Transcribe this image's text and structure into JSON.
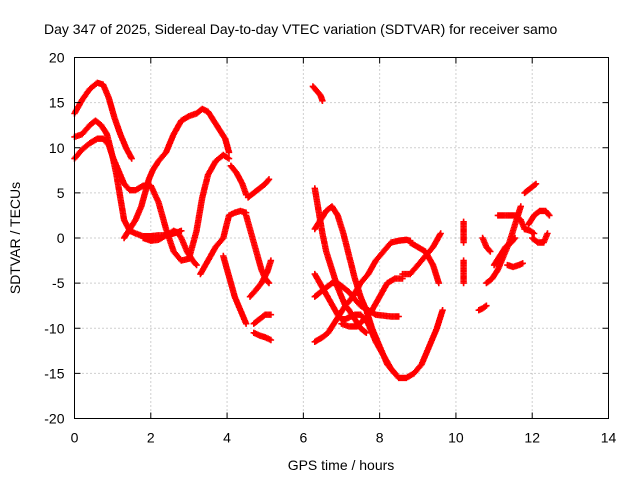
{
  "chart_data": {
    "type": "scatter",
    "title": "Day 347 of 2025, Sidereal Day-to-day VTEC variation (SDTVAR) for receiver samo",
    "xlabel": "GPS time / hours",
    "ylabel": "SDTVAR / TECUs",
    "xlim": [
      0,
      14
    ],
    "ylim": [
      -20,
      20
    ],
    "xticks": [
      "0",
      "2",
      "4",
      "6",
      "8",
      "10",
      "12",
      "14"
    ],
    "yticks": [
      "-20",
      "-15",
      "-10",
      "-5",
      "0",
      "5",
      "10",
      "15",
      "20"
    ],
    "grid": true,
    "marker": "+",
    "marker_color": "#ff0000",
    "series": [
      {
        "x": [
          0.0,
          0.2,
          0.4,
          0.6,
          0.75,
          0.9,
          1.05,
          1.2,
          1.35,
          1.5
        ],
        "y": [
          13.8,
          15.3,
          16.5,
          17.2,
          17.0,
          15.5,
          13.3,
          11.5,
          10.0,
          8.8
        ]
      },
      {
        "x": [
          0.0,
          0.2,
          0.4,
          0.55,
          0.7,
          0.85,
          1.0,
          1.15,
          1.3,
          1.45,
          1.6,
          1.8,
          2.0,
          2.2,
          2.4,
          2.6,
          2.8,
          3.0,
          3.2,
          3.35,
          3.5,
          3.7,
          3.9,
          4.05
        ],
        "y": [
          11.2,
          11.5,
          12.5,
          13.0,
          12.5,
          11.5,
          9.0,
          7.5,
          6.0,
          5.3,
          5.3,
          5.8,
          5.8,
          4.0,
          1.0,
          -1.5,
          -2.5,
          -2.3,
          0.8,
          4.5,
          7.0,
          8.5,
          9.2,
          8.8
        ]
      },
      {
        "x": [
          0.0,
          0.2,
          0.4,
          0.6,
          0.75,
          0.9,
          1.0,
          1.1,
          1.2,
          1.3,
          1.45,
          1.6,
          1.8,
          2.0,
          2.2,
          2.45,
          2.6,
          2.8
        ],
        "y": [
          8.8,
          9.8,
          10.5,
          11.0,
          11.0,
          10.3,
          9.0,
          7.0,
          4.5,
          2.0,
          0.8,
          0.5,
          0.2,
          0.2,
          0.3,
          0.3,
          0.5,
          0.8
        ]
      },
      {
        "x": [
          4.1,
          4.25,
          4.4,
          4.5
        ],
        "y": [
          8.0,
          7.2,
          6.0,
          4.8
        ]
      },
      {
        "x": [
          1.3,
          1.45,
          1.6,
          1.75,
          1.85,
          1.95,
          2.05,
          2.2,
          2.4,
          2.6,
          2.8,
          3.0,
          3.2,
          3.35,
          3.5,
          3.65,
          3.8,
          3.95,
          4.05
        ],
        "y": [
          0.0,
          1.0,
          2.0,
          3.5,
          5.0,
          6.5,
          7.5,
          8.5,
          9.5,
          11.5,
          13.0,
          13.5,
          13.8,
          14.3,
          14.0,
          13.0,
          12.0,
          11.0,
          9.5
        ]
      },
      {
        "x": [
          1.8,
          2.0,
          2.2,
          2.4,
          2.5,
          2.6,
          2.7,
          2.8,
          2.95,
          3.1,
          3.2
        ],
        "y": [
          0.0,
          -0.3,
          -0.2,
          0.3,
          0.5,
          0.8,
          0.6,
          0.0,
          -1.5,
          -2.5,
          -3.0
        ]
      },
      {
        "x": [
          3.3,
          3.5,
          3.7,
          3.9,
          4.05,
          4.2,
          4.35,
          4.5
        ],
        "y": [
          -4.0,
          -2.5,
          -1.0,
          0.0,
          2.5,
          2.8,
          3.0,
          2.8
        ]
      },
      {
        "x": [
          3.9,
          4.0,
          4.1,
          4.2,
          4.3,
          4.4,
          4.5
        ],
        "y": [
          -2.0,
          -3.5,
          -5.0,
          -6.5,
          -7.5,
          -8.5,
          -9.5
        ]
      },
      {
        "x": [
          4.5,
          4.6,
          4.7,
          4.8,
          4.9,
          5.0,
          5.1
        ],
        "y": [
          2.5,
          1.0,
          -0.5,
          -2.0,
          -3.5,
          -4.5,
          -5.0
        ]
      },
      {
        "x": [
          4.6,
          4.75,
          4.9,
          5.05,
          5.15
        ],
        "y": [
          -6.5,
          -5.8,
          -5.0,
          -3.8,
          -2.5
        ]
      },
      {
        "x": [
          4.7,
          4.85,
          5.0,
          5.15
        ],
        "y": [
          -9.5,
          -9.0,
          -8.5,
          -8.5
        ]
      },
      {
        "x": [
          4.7,
          4.85,
          5.0,
          5.15
        ],
        "y": [
          -10.5,
          -10.8,
          -11.0,
          -11.3
        ]
      },
      {
        "x": [
          4.55,
          4.7,
          4.85,
          5.0,
          5.1
        ],
        "y": [
          4.5,
          5.0,
          5.5,
          6.0,
          6.5
        ]
      },
      {
        "x": [
          6.25,
          6.35,
          6.45,
          6.5
        ],
        "y": [
          16.8,
          16.3,
          15.8,
          15.2
        ]
      },
      {
        "x": [
          6.3,
          6.4,
          6.5,
          6.6,
          6.75,
          6.9,
          7.0,
          7.1,
          7.2,
          7.35,
          7.5,
          7.65
        ],
        "y": [
          5.5,
          3.0,
          0.5,
          -1.5,
          -3.5,
          -5.5,
          -6.5,
          -7.5,
          -8.0,
          -9.0,
          -10.0,
          -10.5
        ]
      },
      {
        "x": [
          6.3,
          6.45,
          6.6,
          6.75,
          6.9,
          7.05,
          7.2,
          7.35,
          7.5,
          7.65,
          7.8,
          8.0,
          8.2,
          8.4
        ],
        "y": [
          1.0,
          2.0,
          3.0,
          3.5,
          2.5,
          0.5,
          -2.0,
          -4.5,
          -6.5,
          -8.0,
          -10.0,
          -12.0,
          -14.0,
          -15.0
        ]
      },
      {
        "x": [
          6.3,
          6.5,
          6.7,
          6.9,
          7.0,
          7.1,
          7.2,
          7.35,
          7.5,
          7.7,
          7.9,
          8.1,
          8.3,
          8.5,
          8.7,
          8.9,
          9.1,
          9.3,
          9.5,
          9.65
        ],
        "y": [
          -4.0,
          -5.5,
          -7.0,
          -8.5,
          -9.0,
          -9.0,
          -8.8,
          -8.5,
          -8.5,
          -9.5,
          -11.5,
          -13.0,
          -14.5,
          -15.5,
          -15.5,
          -15.0,
          -14.0,
          -12.0,
          -10.0,
          -8.0
        ]
      },
      {
        "x": [
          6.3,
          6.45,
          6.6,
          6.75,
          6.9,
          7.05,
          7.2,
          7.35,
          7.5,
          7.7,
          7.9,
          8.1,
          8.3,
          8.5
        ],
        "y": [
          -6.5,
          -6.0,
          -5.5,
          -5.0,
          -5.0,
          -5.5,
          -6.0,
          -6.8,
          -7.5,
          -8.0,
          -8.5,
          -8.6,
          -8.7,
          -8.7
        ]
      },
      {
        "x": [
          6.3,
          6.5,
          6.65,
          6.8,
          6.95,
          7.1,
          7.3,
          7.5,
          7.7,
          7.9,
          8.1,
          8.3,
          8.5,
          8.7,
          8.8
        ],
        "y": [
          -11.5,
          -11.0,
          -10.5,
          -9.5,
          -8.5,
          -7.5,
          -6.5,
          -5.0,
          -4.0,
          -2.5,
          -1.5,
          -0.5,
          -0.3,
          -0.2,
          -0.3
        ]
      },
      {
        "x": [
          7.0,
          7.2,
          7.4,
          7.6,
          7.8,
          8.0,
          8.2,
          8.4,
          8.6
        ],
        "y": [
          -9.5,
          -9.8,
          -9.8,
          -9.0,
          -8.0,
          -6.5,
          -5.0,
          -4.5,
          -4.5
        ]
      },
      {
        "x": [
          8.6,
          8.8,
          9.0,
          9.2,
          9.4,
          9.6
        ],
        "y": [
          -4.0,
          -4.0,
          -3.0,
          -2.0,
          -1.0,
          0.5
        ]
      },
      {
        "x": [
          8.8,
          9.0,
          9.2,
          9.4,
          9.55
        ],
        "y": [
          -0.5,
          -1.0,
          -1.5,
          -3.0,
          -5.0
        ]
      },
      {
        "x": [
          10.2,
          10.2
        ],
        "y": [
          1.8,
          -0.5
        ]
      },
      {
        "x": [
          10.2,
          10.2
        ],
        "y": [
          -2.5,
          -5.0
        ]
      },
      {
        "x": [
          10.6,
          10.7,
          10.8
        ],
        "y": [
          -8.0,
          -7.8,
          -7.5
        ]
      },
      {
        "x": [
          10.7,
          10.8,
          10.9
        ],
        "y": [
          0.0,
          -1.0,
          -1.5
        ]
      },
      {
        "x": [
          10.8,
          10.95,
          11.1,
          11.25,
          11.4,
          11.55,
          11.7
        ],
        "y": [
          -5.0,
          -4.5,
          -3.5,
          -2.0,
          -0.5,
          1.5,
          3.5
        ]
      },
      {
        "x": [
          11.0,
          11.15,
          11.3,
          11.45,
          11.55
        ],
        "y": [
          -3.0,
          -2.0,
          -1.0,
          -0.5,
          0.0
        ]
      },
      {
        "x": [
          11.1,
          11.25,
          11.4,
          11.55,
          11.7,
          11.8
        ],
        "y": [
          2.5,
          2.5,
          2.5,
          2.5,
          2.0,
          1.0
        ]
      },
      {
        "x": [
          11.35,
          11.5,
          11.65,
          11.75
        ],
        "y": [
          -3.0,
          -3.2,
          -3.0,
          -2.8
        ]
      },
      {
        "x": [
          11.8,
          11.95,
          12.1
        ],
        "y": [
          5.0,
          5.5,
          6.0
        ]
      },
      {
        "x": [
          11.9,
          12.05,
          12.2,
          12.35,
          12.45
        ],
        "y": [
          1.5,
          2.5,
          3.0,
          3.0,
          2.5
        ]
      },
      {
        "x": [
          12.0,
          12.15,
          12.3,
          12.4
        ],
        "y": [
          0.0,
          -0.5,
          -0.5,
          0.5
        ]
      },
      {
        "x": [
          11.8,
          11.95,
          12.05
        ],
        "y": [
          1.0,
          0.8,
          0.5
        ]
      }
    ]
  }
}
